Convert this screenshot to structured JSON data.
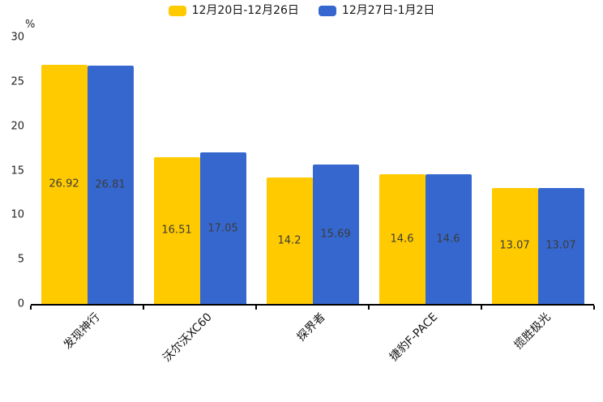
{
  "y_axis": {
    "unit": "%"
  },
  "legend": {
    "items": [
      {
        "label": "12月20日-12月26日",
        "color": "#FFCA00"
      },
      {
        "label": "12月27日-1月2日",
        "color": "#3567CE"
      }
    ]
  },
  "chart_data": {
    "type": "bar",
    "title": "",
    "categories": [
      "发现神行",
      "沃尔沃XC60",
      "探界者",
      "捷豹F-PACE",
      "揽胜极光"
    ],
    "series": [
      {
        "name": "12月20日-12月26日",
        "color": "#FFCA00",
        "values": [
          26.92,
          16.51,
          14.2,
          14.6,
          13.07
        ]
      },
      {
        "name": "12月27日-1月2日",
        "color": "#3567CE",
        "values": [
          26.81,
          17.05,
          15.69,
          14.6,
          13.07
        ]
      }
    ],
    "xlabel": "",
    "ylabel": "%",
    "ylim": [
      0,
      30
    ],
    "yticks": [
      0,
      5,
      10,
      15,
      20,
      25,
      30
    ],
    "grid": false,
    "legend_position": "top",
    "value_label_position": "inside-center",
    "bar_label_color": "#3c3c3c",
    "x_tick_rotation_deg": 45
  }
}
